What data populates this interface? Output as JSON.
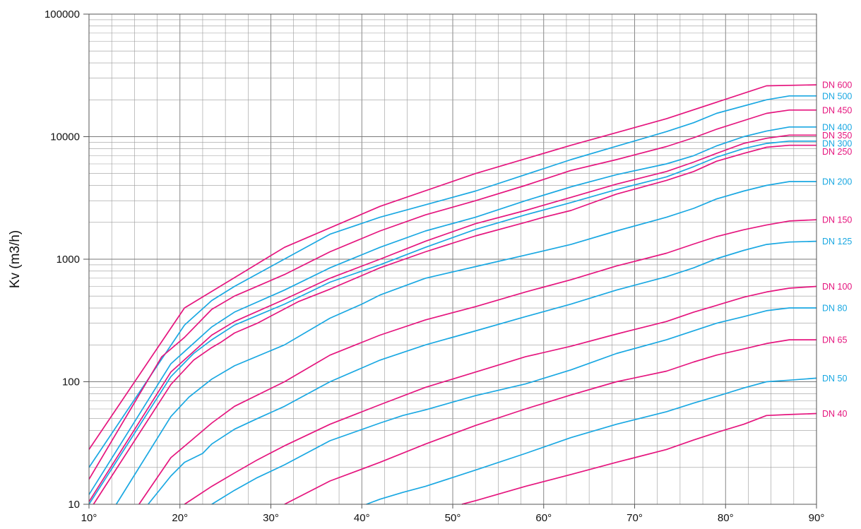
{
  "chart_data": {
    "type": "line",
    "title": "",
    "xlabel": "",
    "ylabel": "Kv (m3/h)",
    "xlim": [
      10,
      90
    ],
    "ylim": [
      10,
      100000
    ],
    "yscale": "log",
    "grid": true,
    "legend": "right-edge labels",
    "x_ticks": [
      10,
      20,
      30,
      40,
      50,
      60,
      70,
      80,
      90
    ],
    "x_tick_labels": [
      "10°",
      "20°",
      "30°",
      "40°",
      "50°",
      "60°",
      "70°",
      "80°",
      "90°"
    ],
    "y_ticks": [
      10,
      100,
      1000,
      10000,
      100000
    ],
    "y_tick_labels": [
      "10",
      "100",
      "1000",
      "10000",
      "100000"
    ],
    "colors": {
      "magenta": "#e5157e",
      "cyan": "#1aa8e2"
    },
    "series": [
      {
        "name": "DN 600",
        "color": "magenta",
        "x": [
          10,
          20.5,
          31.5,
          42,
          52.5,
          63,
          73.5,
          84.5,
          90
        ],
        "values": [
          28,
          400,
          1250,
          2700,
          5000,
          8500,
          14000,
          26000,
          26500
        ]
      },
      {
        "name": "DN 500",
        "color": "cyan",
        "x": [
          10,
          20.5,
          23.5,
          26,
          36.5,
          42,
          52.5,
          63,
          73.5,
          76.5,
          79,
          84.5,
          87,
          90
        ],
        "values": [
          20,
          290,
          460,
          600,
          1600,
          2200,
          3600,
          6500,
          11000,
          13000,
          15500,
          20000,
          21500,
          21500
        ]
      },
      {
        "name": "DN 450",
        "color": "magenta",
        "x": [
          10,
          18,
          20.5,
          23.5,
          26,
          31.5,
          36.5,
          42,
          47,
          52.5,
          58,
          63,
          68,
          73.5,
          76.5,
          79,
          84.5,
          87,
          90
        ],
        "values": [
          16,
          160,
          230,
          390,
          500,
          750,
          1150,
          1700,
          2300,
          3000,
          4000,
          5300,
          6500,
          8300,
          9800,
          11500,
          15500,
          16500,
          16500
        ]
      },
      {
        "name": "DN 400",
        "color": "cyan",
        "x": [
          10,
          19,
          23.5,
          26,
          31.5,
          36.5,
          42,
          47,
          52.5,
          58,
          63,
          68,
          73.5,
          76.5,
          79,
          82,
          84.5,
          87,
          90
        ],
        "values": [
          12,
          140,
          280,
          370,
          560,
          850,
          1250,
          1700,
          2200,
          3000,
          3900,
          4900,
          6000,
          7000,
          8400,
          10000,
          11100,
          12000,
          12000
        ]
      },
      {
        "name": "DN 350",
        "color": "magenta",
        "x": [
          10,
          19,
          23.5,
          26,
          31.5,
          36.5,
          42,
          47,
          52.5,
          58,
          63,
          68,
          73.5,
          76.5,
          79,
          82,
          84.5,
          87,
          90
        ],
        "values": [
          10.5,
          120,
          240,
          310,
          470,
          700,
          1000,
          1400,
          1950,
          2500,
          3200,
          4100,
          5200,
          6200,
          7300,
          8800,
          9700,
          10300,
          10300
        ]
      },
      {
        "name": "DN 300",
        "color": "cyan",
        "x": [
          10,
          19,
          21.5,
          23.5,
          26,
          31.5,
          36.5,
          42,
          47,
          52.5,
          58,
          63,
          68,
          73.5,
          76.5,
          79,
          82,
          84.5,
          87,
          90
        ],
        "values": [
          10,
          110,
          170,
          220,
          290,
          430,
          650,
          900,
          1250,
          1750,
          2300,
          2900,
          3700,
          4700,
          5700,
          6800,
          8000,
          8800,
          9200,
          9200
        ]
      },
      {
        "name": "DN 250",
        "color": "magenta",
        "x": [
          10.5,
          19,
          21.5,
          23.5,
          24.5,
          26,
          28.5,
          33,
          36.5,
          42,
          47,
          52.5,
          58,
          60,
          63,
          68,
          73.5,
          76.5,
          79,
          82,
          84.5,
          87,
          90
        ],
        "values": [
          10,
          95,
          150,
          190,
          210,
          250,
          300,
          450,
          570,
          850,
          1150,
          1550,
          2000,
          2200,
          2500,
          3400,
          4400,
          5200,
          6300,
          7300,
          8200,
          8500,
          8500
        ]
      },
      {
        "name": "DN 200",
        "color": "cyan",
        "x": [
          13,
          19,
          21,
          23.5,
          26,
          31.5,
          36.5,
          40,
          42,
          47,
          52.5,
          58,
          63,
          68,
          73.5,
          76.5,
          79,
          82,
          84.5,
          87,
          90
        ],
        "values": [
          10,
          52,
          75,
          105,
          135,
          200,
          330,
          430,
          510,
          700,
          870,
          1080,
          1320,
          1700,
          2200,
          2600,
          3100,
          3600,
          4000,
          4300,
          4300
        ]
      },
      {
        "name": "DN 150",
        "color": "magenta",
        "x": [
          15.5,
          19,
          21,
          23.5,
          26,
          31.5,
          36.5,
          42,
          47,
          52.5,
          58,
          63,
          68,
          73.5,
          76.5,
          79,
          82,
          84.5,
          87,
          90
        ],
        "values": [
          10,
          24,
          32,
          46,
          63,
          100,
          165,
          240,
          320,
          410,
          540,
          680,
          880,
          1120,
          1330,
          1530,
          1740,
          1900,
          2050,
          2100
        ]
      },
      {
        "name": "DN 125",
        "color": "cyan",
        "x": [
          16.5,
          19,
          20.5,
          22.5,
          23.5,
          26,
          28.5,
          31.5,
          36.5,
          42,
          47,
          52.5,
          58,
          63,
          68,
          73.5,
          76.5,
          79,
          82,
          84.5,
          87,
          90
        ],
        "values": [
          10,
          17,
          22,
          26,
          31,
          41,
          50,
          63,
          100,
          150,
          200,
          260,
          340,
          430,
          560,
          720,
          850,
          1010,
          1180,
          1320,
          1380,
          1400
        ]
      },
      {
        "name": "DN 100",
        "color": "magenta",
        "x": [
          20.5,
          23.5,
          26,
          28.5,
          31.5,
          36.5,
          42,
          47,
          52.5,
          58,
          63,
          68,
          73.5,
          76.5,
          79,
          82,
          84.5,
          87,
          90
        ],
        "values": [
          10,
          14,
          18,
          23,
          30,
          45,
          65,
          90,
          120,
          160,
          195,
          245,
          310,
          370,
          420,
          490,
          540,
          580,
          600
        ]
      },
      {
        "name": "DN 80",
        "color": "cyan",
        "x": [
          23.5,
          26,
          28.5,
          31.5,
          36.5,
          42,
          44.5,
          47,
          52.5,
          58,
          63,
          68,
          73.5,
          79,
          82,
          84.5,
          87,
          90
        ],
        "values": [
          10,
          13,
          16.5,
          21,
          33,
          46,
          53,
          59,
          77,
          96,
          125,
          170,
          220,
          300,
          340,
          380,
          400,
          400
        ]
      },
      {
        "name": "DN 65",
        "color": "magenta",
        "x": [
          31.5,
          36.5,
          42,
          47,
          52.5,
          58,
          63,
          68,
          73.5,
          76.5,
          79,
          82,
          84.5,
          87,
          90
        ],
        "values": [
          10,
          15.5,
          22,
          31,
          44,
          60,
          78,
          100,
          122,
          145,
          165,
          185,
          205,
          220,
          220
        ]
      },
      {
        "name": "DN 50",
        "color": "cyan",
        "x": [
          40.5,
          42,
          44.5,
          47,
          52.5,
          58,
          63,
          68,
          73.5,
          76.5,
          79,
          82,
          84.5,
          87,
          90
        ],
        "values": [
          10,
          11,
          12.5,
          14,
          19,
          26,
          35,
          45,
          57,
          67,
          76,
          89,
          100,
          103,
          107
        ]
      },
      {
        "name": "DN 40",
        "color": "magenta",
        "x": [
          51,
          52.5,
          58,
          63,
          68,
          73.5,
          76.5,
          79,
          82,
          84.5,
          87,
          90
        ],
        "values": [
          10,
          10.7,
          14,
          17.5,
          22,
          28,
          33.5,
          38.5,
          45,
          53,
          54,
          55
        ]
      }
    ]
  }
}
